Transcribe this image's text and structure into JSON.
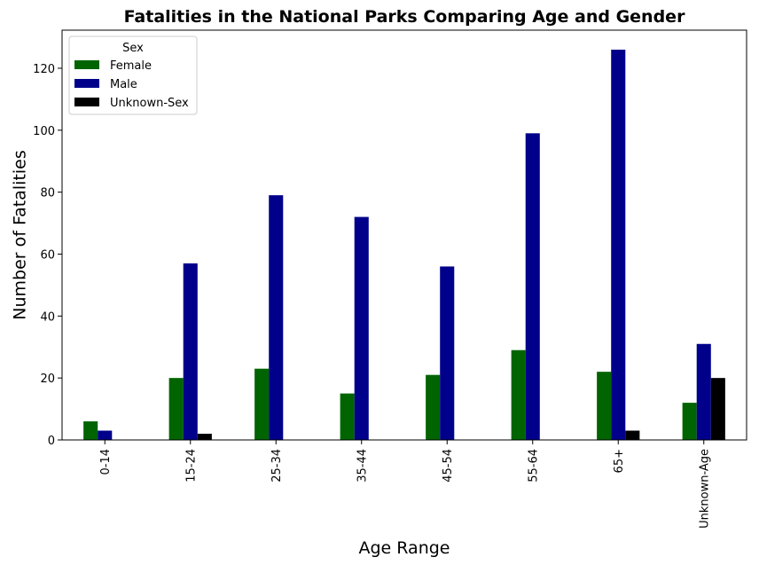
{
  "chart_data": {
    "type": "bar",
    "title": "Fatalities in the National Parks Comparing Age and Gender",
    "xlabel": "Age Range",
    "ylabel": "Number of Fatalities",
    "categories": [
      "0-14",
      "15-24",
      "25-34",
      "35-44",
      "45-54",
      "55-64",
      "65+",
      "Unknown-Age"
    ],
    "series": [
      {
        "name": "Female",
        "color": "#006400",
        "values": [
          6,
          20,
          23,
          15,
          21,
          29,
          22,
          12
        ]
      },
      {
        "name": "Male",
        "color": "#00008b",
        "values": [
          3,
          57,
          79,
          72,
          56,
          99,
          126,
          31
        ]
      },
      {
        "name": "Unknown-Sex",
        "color": "#000000",
        "values": [
          0,
          2,
          0,
          0,
          0,
          0,
          3,
          20
        ]
      }
    ],
    "ylim": [
      0,
      132.3
    ],
    "yticks": [
      "0",
      "20",
      "40",
      "60",
      "80",
      "100",
      "120"
    ],
    "legend": {
      "title": "Sex",
      "placement": "top-left"
    },
    "grid": false
  }
}
